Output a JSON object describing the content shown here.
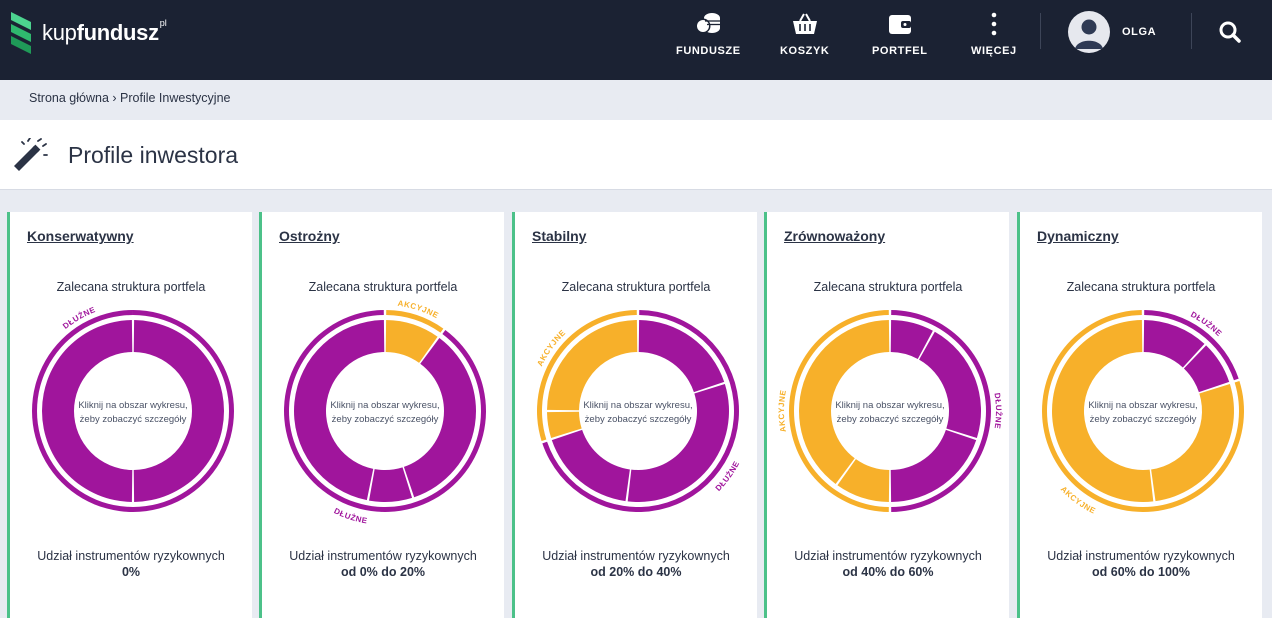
{
  "brand": {
    "name_light": "kup",
    "name_bold": "fundusz",
    "suffix": "pl"
  },
  "nav": {
    "items": [
      {
        "label": "FUNDUSZE",
        "icon": "coins-icon"
      },
      {
        "label": "KOSZYK",
        "icon": "basket-icon"
      },
      {
        "label": "PORTFEL",
        "icon": "wallet-icon"
      },
      {
        "label": "WIĘCEJ",
        "icon": "more-vertical-icon"
      }
    ],
    "user": "OLGA"
  },
  "breadcrumb": "Strona główna › Profile Inwestycyjne",
  "page_title": "Profile inwestora",
  "colors": {
    "debt": "#a0159c",
    "equity": "#f7b02a",
    "accent": "#4cc189",
    "nav_bg": "#1b2233"
  },
  "chart_common": {
    "subtitle": "Zalecana struktura portfela",
    "center_line1": "Kliknij na obszar wykresu,",
    "center_line2": "żeby zobaczyć szczegóły",
    "risk_label": "Udział instrumentów ryzykownych",
    "equity_label": "AKCYJNE",
    "debt_label": "DŁUŻNE"
  },
  "profiles": [
    {
      "title": "Konserwatywny",
      "risk_range": "0%"
    },
    {
      "title": "Ostrożny",
      "risk_range": "od 0% do 20%"
    },
    {
      "title": "Stabilny",
      "risk_range": "od 20% do 40%"
    },
    {
      "title": "Zrównoważony",
      "risk_range": "od 40% do 60%"
    },
    {
      "title": "Dynamiczny",
      "risk_range": "od 60% do 100%"
    }
  ],
  "chart_data": [
    {
      "type": "pie",
      "title": "Zalecana struktura portfela",
      "outer": [
        {
          "name": "DŁUŻNE",
          "value": 100
        }
      ],
      "inner": [
        {
          "name": "DŁUŻNE",
          "value": 50
        },
        {
          "name": "DŁUŻNE",
          "value": 50
        }
      ]
    },
    {
      "type": "pie",
      "title": "Zalecana struktura portfela",
      "outer": [
        {
          "name": "AKCYJNE",
          "value": 10
        },
        {
          "name": "DŁUŻNE",
          "value": 90
        }
      ],
      "inner": [
        {
          "name": "AKCYJNE",
          "value": 10
        },
        {
          "name": "DŁUŻNE",
          "value": 35
        },
        {
          "name": "DŁUŻNE",
          "value": 8
        },
        {
          "name": "DŁUŻNE",
          "value": 47
        }
      ]
    },
    {
      "type": "pie",
      "title": "Zalecana struktura portfela",
      "outer": [
        {
          "name": "DŁUŻNE",
          "value": 70
        },
        {
          "name": "AKCYJNE",
          "value": 30
        }
      ],
      "inner": [
        {
          "name": "DŁUŻNE",
          "value": 20
        },
        {
          "name": "DŁUŻNE",
          "value": 32
        },
        {
          "name": "DŁUŻNE",
          "value": 18
        },
        {
          "name": "AKCYJNE",
          "value": 5
        },
        {
          "name": "AKCYJNE",
          "value": 25
        }
      ]
    },
    {
      "type": "pie",
      "title": "Zalecana struktura portfela",
      "outer": [
        {
          "name": "DŁUŻNE",
          "value": 50
        },
        {
          "name": "AKCYJNE",
          "value": 50
        }
      ],
      "inner": [
        {
          "name": "DŁUŻNE",
          "value": 8
        },
        {
          "name": "DŁUŻNE",
          "value": 22
        },
        {
          "name": "DŁUŻNE",
          "value": 20
        },
        {
          "name": "AKCYJNE",
          "value": 10
        },
        {
          "name": "AKCYJNE",
          "value": 40
        }
      ]
    },
    {
      "type": "pie",
      "title": "Zalecana struktura portfela",
      "outer": [
        {
          "name": "DŁUŻNE",
          "value": 20
        },
        {
          "name": "AKCYJNE",
          "value": 80
        }
      ],
      "inner": [
        {
          "name": "DŁUŻNE",
          "value": 12
        },
        {
          "name": "DŁUŻNE",
          "value": 8
        },
        {
          "name": "AKCYJNE",
          "value": 28
        },
        {
          "name": "AKCYJNE",
          "value": 52
        }
      ]
    }
  ]
}
